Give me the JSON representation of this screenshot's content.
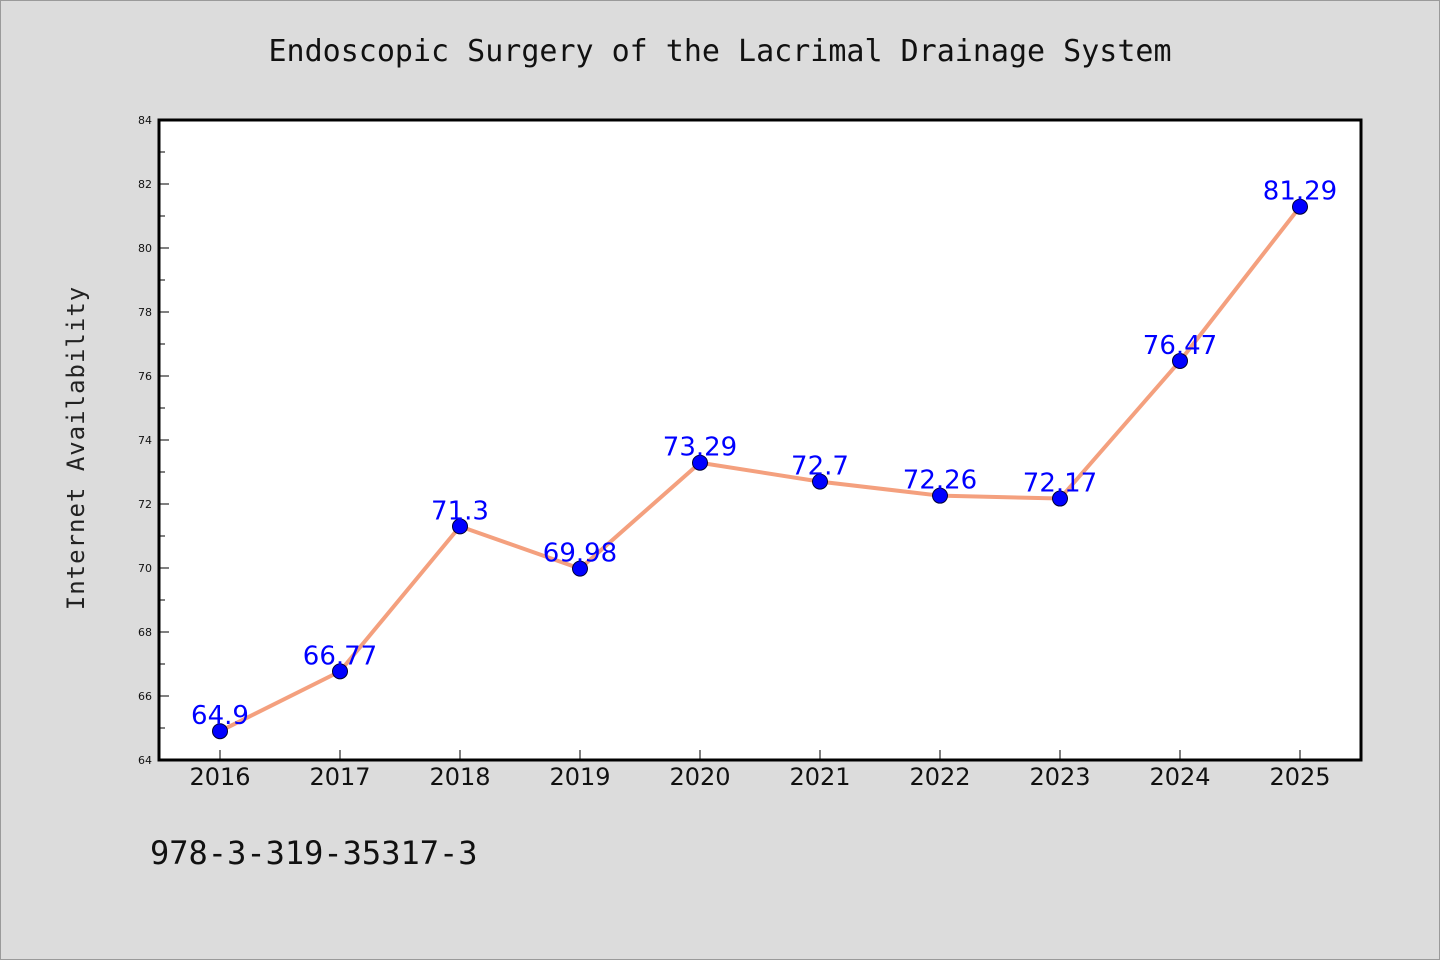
{
  "chart_data": {
    "type": "line",
    "title": "Endoscopic Surgery of the Lacrimal Drainage System",
    "xlabel": "",
    "ylabel": "Internet Availability",
    "categories": [
      "2016",
      "2017",
      "2018",
      "2019",
      "2020",
      "2021",
      "2022",
      "2023",
      "2024",
      "2025"
    ],
    "series": [
      {
        "values": [
          64.9,
          66.77,
          71.3,
          69.98,
          73.29,
          72.7,
          72.26,
          72.17,
          76.47,
          81.29
        ]
      }
    ],
    "data_labels": [
      "64.9",
      "66.77",
      "71.3",
      "69.98",
      "73.29",
      "72.7",
      "72.26",
      "72.17",
      "76.47",
      "81.29"
    ],
    "ylim": [
      64,
      84
    ],
    "yticks": [
      "64",
      "66",
      "68",
      "70",
      "72",
      "74",
      "76",
      "78",
      "80",
      "82",
      "84"
    ],
    "grid": false,
    "line_color": "#f4a07e",
    "marker_color": "#0000ff",
    "label_color": "#0000ff",
    "background_color": "#dcdcdc",
    "plot_background": "#ffffff"
  },
  "footnote": "978-3-319-35317-3"
}
